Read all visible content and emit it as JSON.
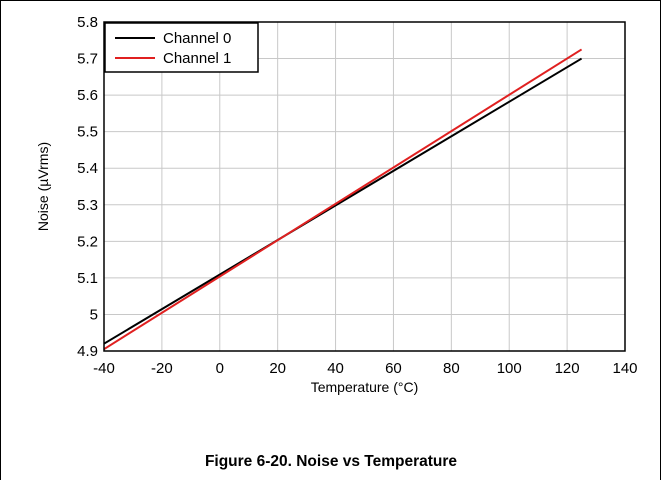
{
  "chart_data": {
    "type": "line",
    "title": "",
    "xlabel": "Temperature (°C)",
    "ylabel": "Noise (µVrms)",
    "xlim": [
      -40,
      140
    ],
    "ylim": [
      4.9,
      5.8
    ],
    "xticks": [
      -40,
      -20,
      0,
      20,
      40,
      60,
      80,
      100,
      120,
      140
    ],
    "yticks": [
      4.9,
      5,
      5.1,
      5.2,
      5.3,
      5.4,
      5.5,
      5.6,
      5.7,
      5.8
    ],
    "ytick_labels": [
      "4.9",
      "5",
      "5.1",
      "5.2",
      "5.3",
      "5.4",
      "5.5",
      "5.6",
      "5.7",
      "5.8"
    ],
    "grid": true,
    "legend_position": "top-left",
    "series": [
      {
        "name": "Channel 0",
        "color": "#000000",
        "x": [
          -40,
          125
        ],
        "y": [
          4.92,
          5.7
        ]
      },
      {
        "name": "Channel 1",
        "color": "#e02020",
        "x": [
          -40,
          125
        ],
        "y": [
          4.905,
          5.725
        ]
      }
    ]
  },
  "figure_caption": "Figure 6-20. Noise vs Temperature"
}
